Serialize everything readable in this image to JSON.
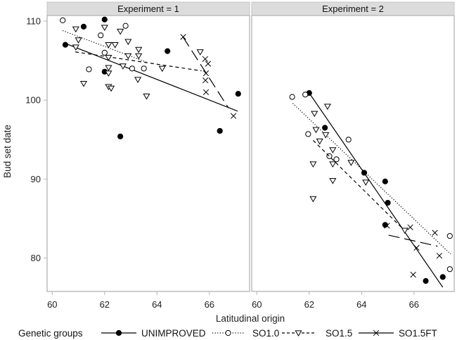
{
  "chart_data": {
    "type": "scatter",
    "ylabel": "Bud set date",
    "xlabel": "Latitudinal origin",
    "xlim": [
      59.8,
      67.6
    ],
    "ylim": [
      75.7,
      112.3
    ],
    "xticks": [
      60,
      62,
      64,
      66
    ],
    "xtick_labels": [
      "60",
      "62",
      "64",
      "66"
    ],
    "yticks": [
      80,
      90,
      100,
      110
    ],
    "ytick_labels": [
      "80",
      "90",
      "100",
      "110"
    ],
    "grid": false,
    "legend": {
      "title": "Genetic groups",
      "placement": "bottom",
      "entries": [
        {
          "name": "UNIMPROVED",
          "marker": "filled-circle",
          "line": "solid"
        },
        {
          "name": "SO1.0",
          "marker": "open-circle",
          "line": "dotted"
        },
        {
          "name": "SO1.5",
          "marker": "open-triangle-down",
          "line": "dashed"
        },
        {
          "name": "SO1.5FT",
          "marker": "x",
          "line": "long-dash"
        }
      ]
    },
    "panels": [
      {
        "title": "Experiment = 1",
        "series": [
          {
            "name": "UNIMPROVED",
            "points": [
              [
                60.5,
                107.0
              ],
              [
                61.2,
                109.3
              ],
              [
                62.0,
                110.2
              ],
              [
                62.0,
                103.6
              ],
              [
                62.6,
                95.4
              ],
              [
                64.4,
                106.2
              ],
              [
                66.4,
                96.1
              ],
              [
                67.1,
                100.8
              ]
            ],
            "fit": [
              [
                60.56,
                107.1
              ],
              [
                67.08,
                98.6
              ]
            ]
          },
          {
            "name": "SO1.0",
            "points": [
              [
                60.4,
                110.1
              ],
              [
                61.4,
                103.9
              ],
              [
                61.85,
                108.2
              ],
              [
                62.0,
                106.0
              ],
              [
                62.8,
                109.4
              ],
              [
                63.05,
                104.0
              ],
              [
                63.5,
                104.0
              ]
            ],
            "fit": [
              [
                60.4,
                108.8
              ],
              [
                63.6,
                104.8
              ]
            ]
          },
          {
            "name": "SO1.5",
            "points": [
              [
                60.9,
                109.0
              ],
              [
                61.0,
                107.6
              ],
              [
                60.9,
                106.7
              ],
              [
                61.2,
                102.1
              ],
              [
                62.0,
                109.2
              ],
              [
                62.15,
                107.0
              ],
              [
                62.4,
                107.0
              ],
              [
                62.15,
                105.4
              ],
              [
                62.15,
                104.1
              ],
              [
                62.15,
                103.4
              ],
              [
                62.15,
                101.7
              ],
              [
                62.25,
                101.5
              ],
              [
                62.6,
                108.7
              ],
              [
                62.9,
                107.4
              ],
              [
                62.9,
                105.6
              ],
              [
                62.7,
                104.3
              ],
              [
                63.3,
                106.4
              ],
              [
                63.3,
                105.6
              ],
              [
                63.27,
                102.6
              ],
              [
                63.6,
                100.5
              ],
              [
                64.2,
                104.0
              ],
              [
                65.65,
                106.1
              ]
            ],
            "fit": [
              [
                60.88,
                106.1
              ],
              [
                65.7,
                103.7
              ]
            ]
          },
          {
            "name": "SO1.5FT",
            "points": [
              [
                65.0,
                108.0
              ],
              [
                65.84,
                105.2
              ],
              [
                65.95,
                104.6
              ],
              [
                65.87,
                103.4
              ],
              [
                65.85,
                102.5
              ],
              [
                65.87,
                101.0
              ],
              [
                66.92,
                98.0
              ]
            ],
            "fit": [
              [
                64.99,
                108.0
              ],
              [
                66.73,
                99.0
              ]
            ]
          }
        ]
      },
      {
        "title": "Experiment = 2",
        "series": [
          {
            "name": "UNIMPROVED",
            "points": [
              [
                62.0,
                100.9
              ],
              [
                62.6,
                96.5
              ],
              [
                64.1,
                90.8
              ],
              [
                64.9,
                89.7
              ],
              [
                65.0,
                87.0
              ],
              [
                64.9,
                84.2
              ],
              [
                66.45,
                77.1
              ],
              [
                67.1,
                77.6
              ]
            ],
            "fit": [
              [
                62.0,
                100.9
              ],
              [
                67.1,
                76.3
              ]
            ]
          },
          {
            "name": "SO1.0",
            "points": [
              [
                61.35,
                100.4
              ],
              [
                61.85,
                100.7
              ],
              [
                61.96,
                95.7
              ],
              [
                62.77,
                92.9
              ],
              [
                63.04,
                92.5
              ],
              [
                63.5,
                95.0
              ],
              [
                67.37,
                82.8
              ],
              [
                67.37,
                78.6
              ]
            ],
            "fit": [
              [
                61.37,
                99.6
              ],
              [
                67.4,
                80.5
              ]
            ]
          },
          {
            "name": "SO1.5",
            "points": [
              [
                62.2,
                98.3
              ],
              [
                62.7,
                99.2
              ],
              [
                62.26,
                96.25
              ],
              [
                62.63,
                95.6
              ],
              [
                62.4,
                94.8
              ],
              [
                62.9,
                93.7
              ],
              [
                62.15,
                91.9
              ],
              [
                62.9,
                91.9
              ],
              [
                63.6,
                92.1
              ],
              [
                62.9,
                89.8
              ],
              [
                62.15,
                87.5
              ],
              [
                64.16,
                89.6
              ],
              [
                65.65,
                83.5
              ]
            ],
            "fit": [
              [
                62.15,
                94.9
              ],
              [
                65.7,
                83.3
              ]
            ]
          },
          {
            "name": "SO1.5FT",
            "points": [
              [
                64.97,
                84.1
              ],
              [
                65.86,
                83.9
              ],
              [
                66.8,
                83.2
              ],
              [
                66.1,
                81.3
              ],
              [
                66.97,
                80.3
              ],
              [
                65.97,
                77.9
              ]
            ],
            "fit": [
              [
                65.03,
                82.9
              ],
              [
                66.9,
                81.5
              ]
            ]
          }
        ]
      }
    ]
  }
}
